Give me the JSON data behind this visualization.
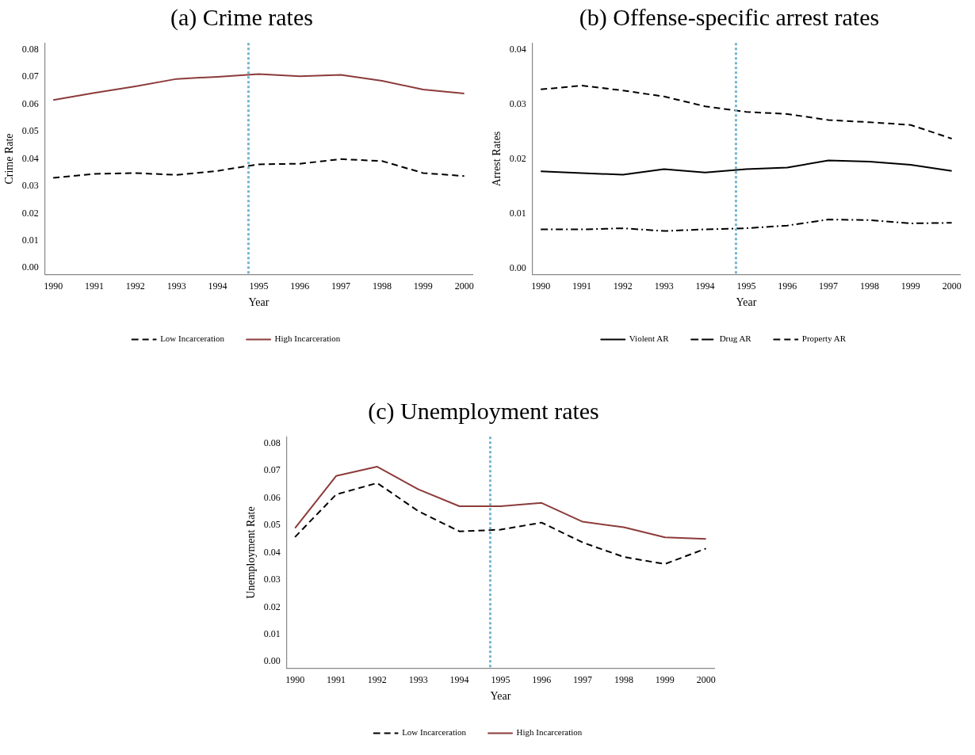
{
  "chart_data": [
    {
      "type": "line",
      "title": "(a) Crime rates",
      "xlabel": "Year",
      "ylabel": "Crime Rate",
      "x": [
        1990,
        1991,
        1992,
        1993,
        1994,
        1995,
        1996,
        1997,
        1998,
        1999,
        2000
      ],
      "xlim": [
        1989.8,
        2000.2
      ],
      "xticks": [
        1990,
        1991,
        1992,
        1993,
        1994,
        1995,
        1996,
        1997,
        1998,
        1999,
        2000
      ],
      "ylim": [
        -0.0025,
        0.0825
      ],
      "yticks": [
        {
          "value": 0,
          "label": "0.00"
        },
        {
          "value": 0.01,
          "label": "0.01"
        },
        {
          "value": 0.02,
          "label": "0.02"
        },
        {
          "value": 0.03,
          "label": "0.03"
        },
        {
          "value": 0.04,
          "label": "0.04"
        },
        {
          "value": 0.05,
          "label": "0.05"
        },
        {
          "value": 0.06,
          "label": "0.06"
        },
        {
          "value": 0.07,
          "label": "0.07"
        },
        {
          "value": 0.08,
          "label": "0.08"
        }
      ],
      "grid": false,
      "legend": "bottom",
      "marker": "none",
      "ref_lines": [
        {
          "axis": "x",
          "value": 1994.75,
          "color": "#73b5cf",
          "line_style": "dotted"
        }
      ],
      "series": [
        {
          "name": "Low Incarceration",
          "color": "#000000",
          "line_style": "dashed",
          "values": [
            0.033,
            0.0345,
            0.0348,
            0.0341,
            0.0356,
            0.038,
            0.0382,
            0.0399,
            0.0392,
            0.0348,
            0.0337
          ]
        },
        {
          "name": "High Incarceration",
          "color": "#8c3b3b",
          "line_style": "solid",
          "values": [
            0.0616,
            0.0642,
            0.0666,
            0.0693,
            0.0701,
            0.0711,
            0.0703,
            0.0708,
            0.0686,
            0.0654,
            0.064
          ]
        }
      ]
    },
    {
      "type": "line",
      "title": "(b) Offense-specific arrest rates",
      "xlabel": "Year",
      "ylabel": "Arrest Rates",
      "x": [
        1990,
        1991,
        1992,
        1993,
        1994,
        1995,
        1996,
        1997,
        1998,
        1999,
        2000
      ],
      "xlim": [
        1989.8,
        2000.2
      ],
      "xticks": [
        1990,
        1991,
        1992,
        1993,
        1994,
        1995,
        1996,
        1997,
        1998,
        1999,
        2000
      ],
      "ylim": [
        -0.0012,
        0.0412
      ],
      "yticks": [
        {
          "value": 0,
          "label": "0.00"
        },
        {
          "value": 0.01,
          "label": "0.01"
        },
        {
          "value": 0.02,
          "label": "0.02"
        },
        {
          "value": 0.03,
          "label": "0.03"
        },
        {
          "value": 0.04,
          "label": "0.04"
        }
      ],
      "grid": false,
      "legend": "bottom",
      "marker": "none",
      "ref_lines": [
        {
          "axis": "x",
          "value": 1994.75,
          "color": "#73b5cf",
          "line_style": "dotted"
        }
      ],
      "series": [
        {
          "name": "Violent AR",
          "color": "#000000",
          "line_style": "solid",
          "values": [
            0.0177,
            0.0174,
            0.0171,
            0.0181,
            0.0175,
            0.0181,
            0.0184,
            0.0197,
            0.0195,
            0.0189,
            0.0178
          ]
        },
        {
          "name": "Drug AR",
          "color": "#000000",
          "line_style": "dashdot",
          "values": [
            0.0071,
            0.0071,
            0.0073,
            0.0068,
            0.0071,
            0.0073,
            0.0078,
            0.0089,
            0.0088,
            0.0082,
            0.0083
          ]
        },
        {
          "name": "Property AR",
          "color": "#000000",
          "line_style": "dashed",
          "values": [
            0.0327,
            0.0334,
            0.0325,
            0.0314,
            0.0296,
            0.0286,
            0.0282,
            0.0271,
            0.0267,
            0.0262,
            0.0237
          ]
        }
      ]
    },
    {
      "type": "line",
      "title": "(c) Unemployment rates",
      "xlabel": "Year",
      "ylabel": "Unemployment Rate",
      "x": [
        1990,
        1991,
        1992,
        1993,
        1994,
        1995,
        1996,
        1997,
        1998,
        1999,
        2000
      ],
      "xlim": [
        1989.8,
        2000.2
      ],
      "xticks": [
        1990,
        1991,
        1992,
        1993,
        1994,
        1995,
        1996,
        1997,
        1998,
        1999,
        2000
      ],
      "ylim": [
        -0.0025,
        0.0825
      ],
      "yticks": [
        {
          "value": 0,
          "label": "0.00"
        },
        {
          "value": 0.01,
          "label": "0.01"
        },
        {
          "value": 0.02,
          "label": "0.02"
        },
        {
          "value": 0.03,
          "label": "0.03"
        },
        {
          "value": 0.04,
          "label": "0.04"
        },
        {
          "value": 0.05,
          "label": "0.05"
        },
        {
          "value": 0.06,
          "label": "0.06"
        },
        {
          "value": 0.07,
          "label": "0.07"
        },
        {
          "value": 0.08,
          "label": "0.08"
        }
      ],
      "grid": false,
      "legend": "bottom",
      "marker": "none",
      "ref_lines": [
        {
          "axis": "x",
          "value": 1994.75,
          "color": "#73b5cf",
          "line_style": "dotted"
        }
      ],
      "series": [
        {
          "name": "Low Incarceration",
          "color": "#000000",
          "line_style": "dashed",
          "values": [
            0.0457,
            0.0613,
            0.0655,
            0.0552,
            0.0478,
            0.0484,
            0.051,
            0.0437,
            0.0384,
            0.0358,
            0.0415
          ]
        },
        {
          "name": "High Incarceration",
          "color": "#8c3b3b",
          "line_style": "solid",
          "values": [
            0.049,
            0.0681,
            0.0715,
            0.0632,
            0.057,
            0.057,
            0.0582,
            0.0513,
            0.0493,
            0.0456,
            0.045
          ]
        }
      ]
    }
  ]
}
